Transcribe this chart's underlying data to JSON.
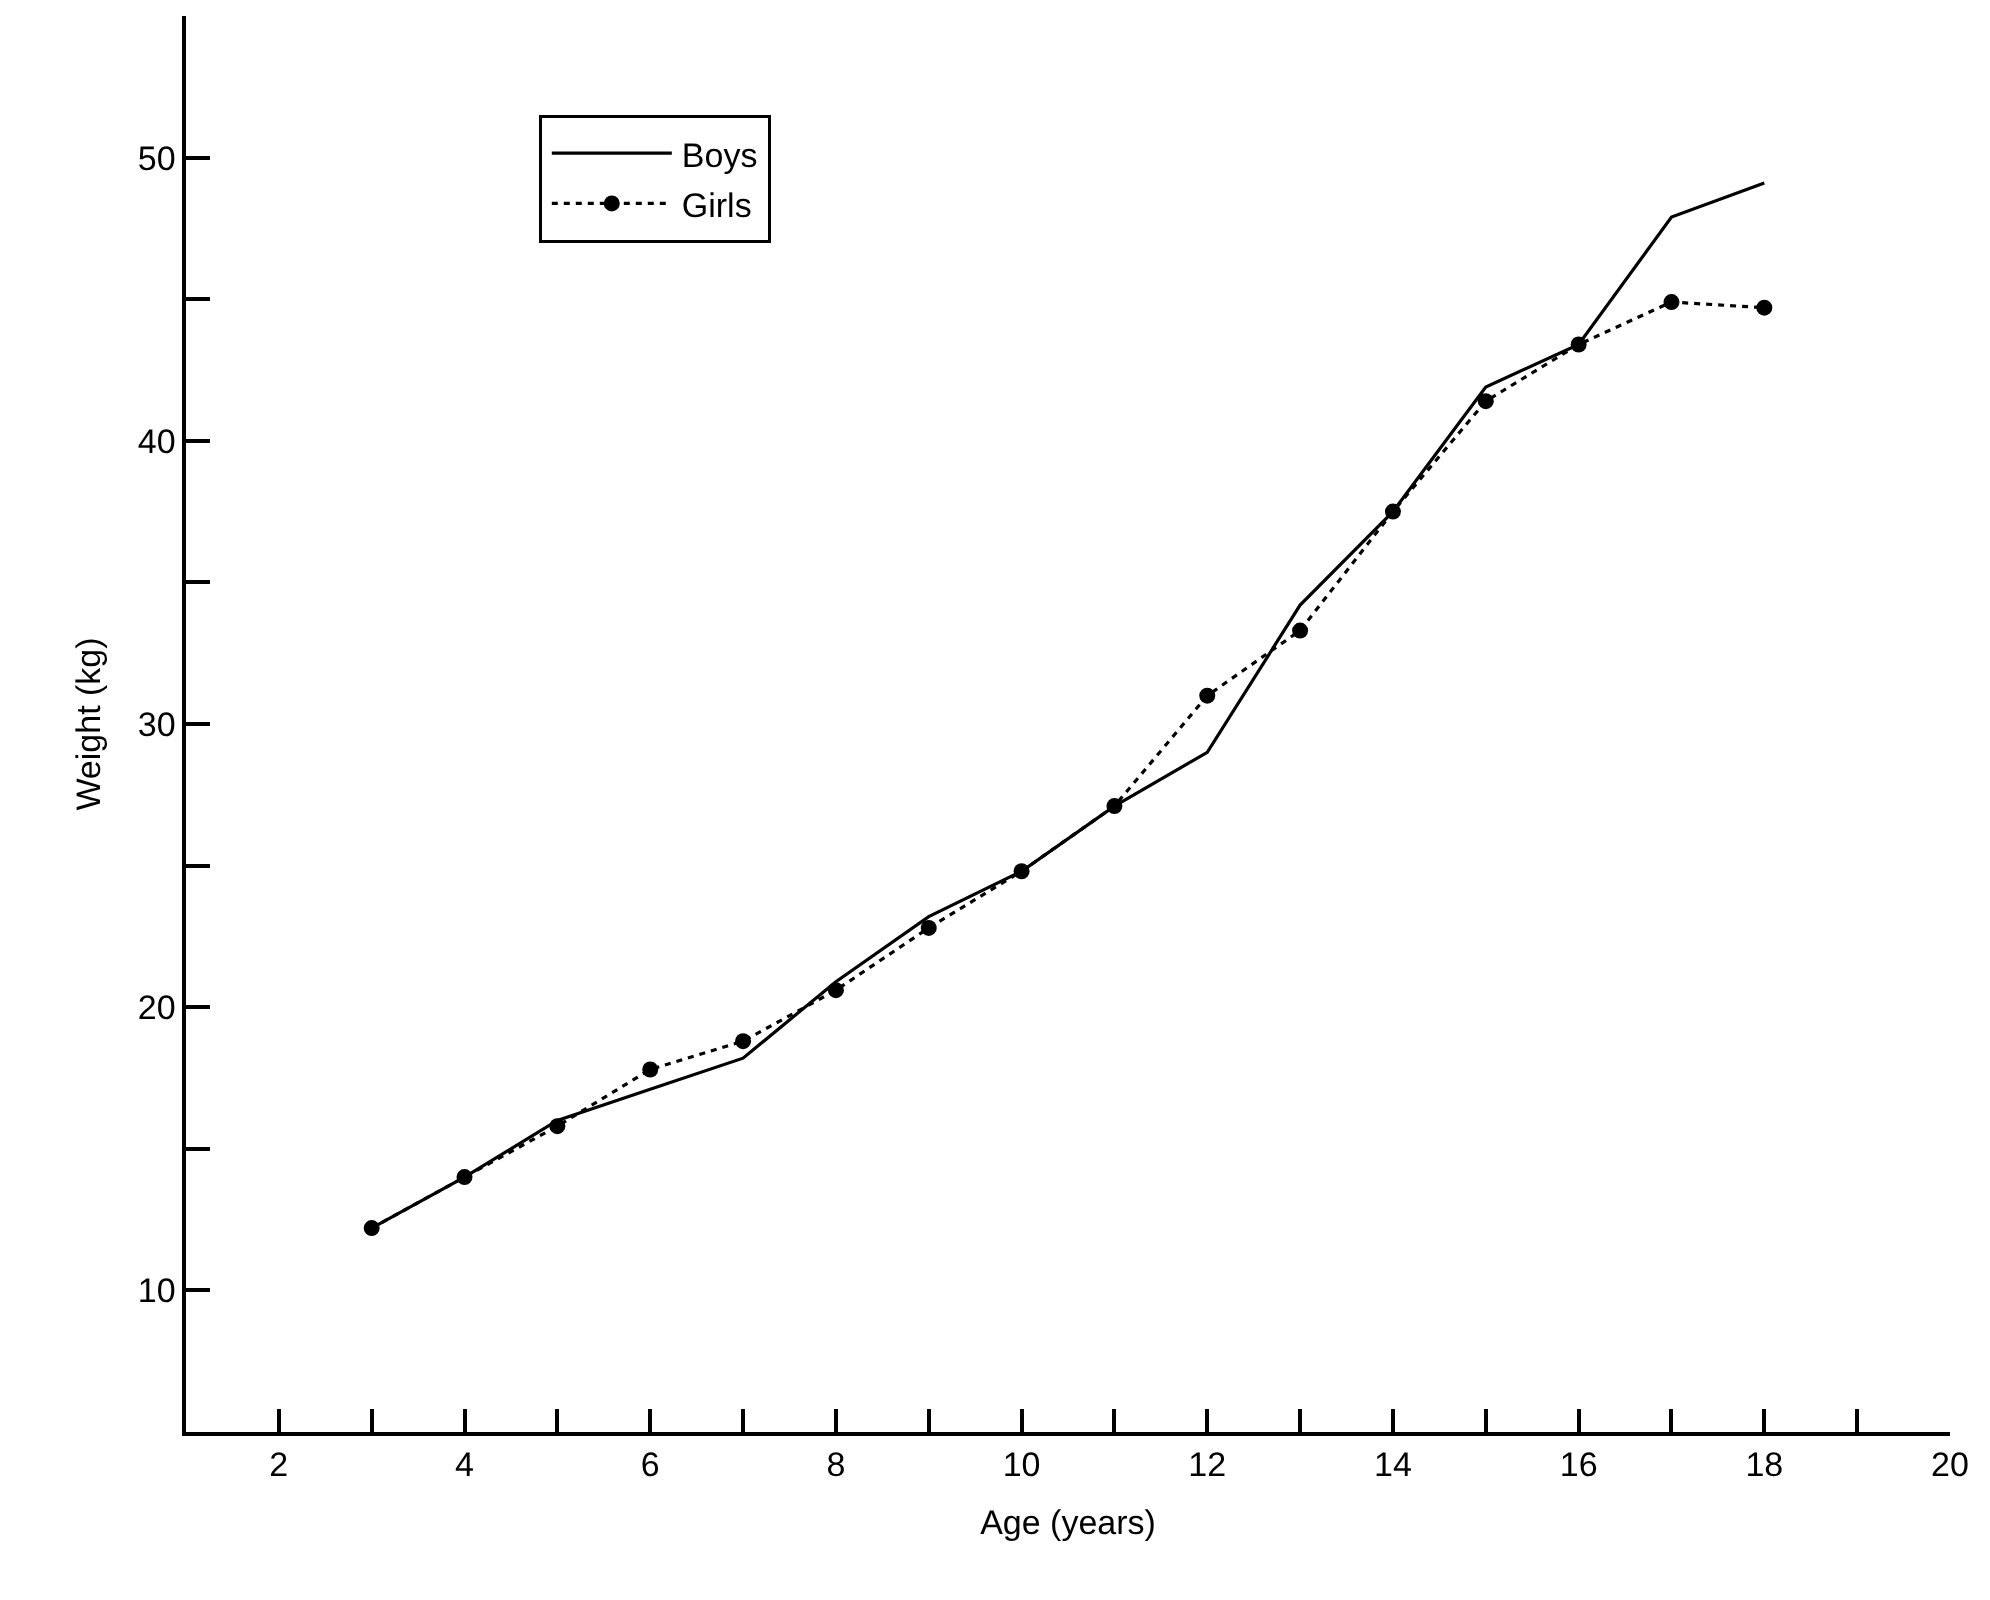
{
  "chart_data": {
    "type": "line",
    "xlabel": "Age (years)",
    "ylabel": "Weight (kg)",
    "x": [
      3,
      4,
      5,
      6,
      7,
      8,
      9,
      10,
      11,
      12,
      13,
      14,
      15,
      16,
      17,
      18
    ],
    "series": [
      {
        "name": "Boys",
        "color": "#000000",
        "marker": "none",
        "line_style": "solid",
        "values": [
          12.2,
          14.0,
          16.0,
          17.1,
          18.2,
          20.9,
          23.2,
          24.8,
          27.1,
          29.0,
          34.2,
          37.5,
          41.9,
          43.4,
          47.9,
          49.1
        ]
      },
      {
        "name": "Girls",
        "color": "#000000",
        "marker": "circle",
        "line_style": "dotted",
        "values": [
          12.2,
          14.0,
          15.8,
          17.8,
          18.8,
          20.6,
          22.8,
          24.8,
          27.1,
          31.0,
          33.3,
          37.5,
          41.4,
          43.4,
          44.9,
          44.7
        ]
      }
    ],
    "xlim": [
      1,
      20
    ],
    "xticks": [
      {
        "value": 1,
        "label": null
      },
      2,
      {
        "value": 3,
        "label": null
      },
      4,
      {
        "value": 5,
        "label": null
      },
      6,
      {
        "value": 7,
        "label": null
      },
      8,
      {
        "value": 9,
        "label": null
      },
      10,
      {
        "value": 11,
        "label": null
      },
      12,
      {
        "value": 13,
        "label": null
      },
      14,
      {
        "value": 15,
        "label": null
      },
      16,
      {
        "value": 17,
        "label": null
      },
      18,
      {
        "value": 19,
        "label": null
      },
      20
    ],
    "ylim": [
      5,
      55
    ],
    "yticks": [
      10,
      {
        "value": 15,
        "label": null
      },
      20,
      {
        "value": 25,
        "label": null
      },
      30,
      {
        "value": 35,
        "label": null
      },
      40,
      {
        "value": 45,
        "label": null
      },
      50
    ],
    "grid": false,
    "legend": "top left"
  }
}
